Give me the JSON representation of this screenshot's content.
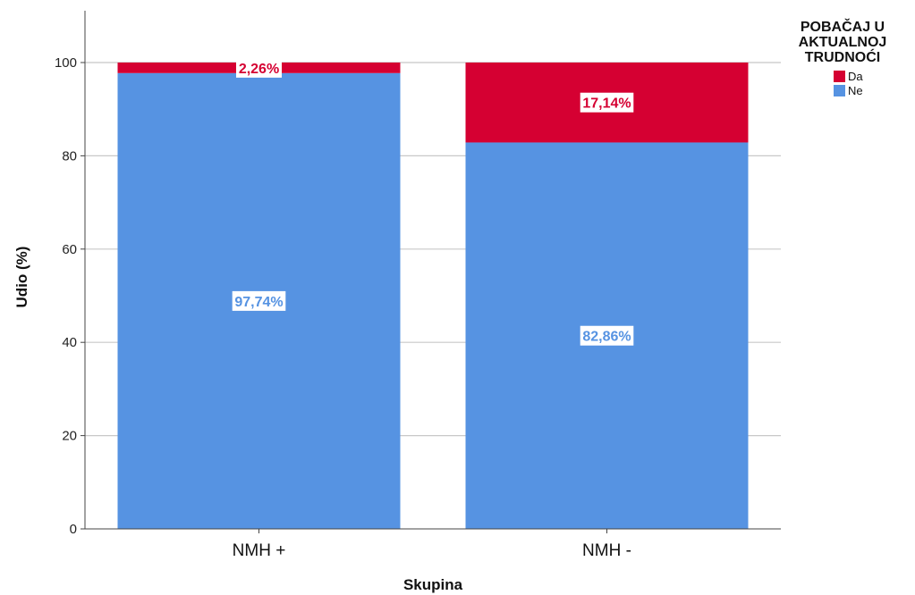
{
  "chart_data": {
    "type": "bar",
    "stacked": true,
    "categories": [
      "NMH +",
      "NMH -"
    ],
    "series": [
      {
        "name": "Ne",
        "values": [
          97.74,
          82.86
        ],
        "labels": [
          "97,74%",
          "82,86%"
        ],
        "color": "#5693e2"
      },
      {
        "name": "Da",
        "values": [
          2.26,
          17.14
        ],
        "labels": [
          "2,26%",
          "17,14%"
        ],
        "color": "#d50032"
      }
    ],
    "title": "",
    "xlabel": "Skupina",
    "ylabel": "Udio (%)",
    "ylim": [
      0,
      110
    ],
    "yticks": [
      0,
      20,
      40,
      60,
      80,
      100
    ],
    "grid": true,
    "legend": {
      "title": [
        "POBAČAJ U",
        "AKTUALNOJ",
        "TRUDNOĆI"
      ],
      "position": "top-right",
      "entries": [
        {
          "label": "Da",
          "color": "#d50032"
        },
        {
          "label": "Ne",
          "color": "#5693e2"
        }
      ]
    }
  }
}
